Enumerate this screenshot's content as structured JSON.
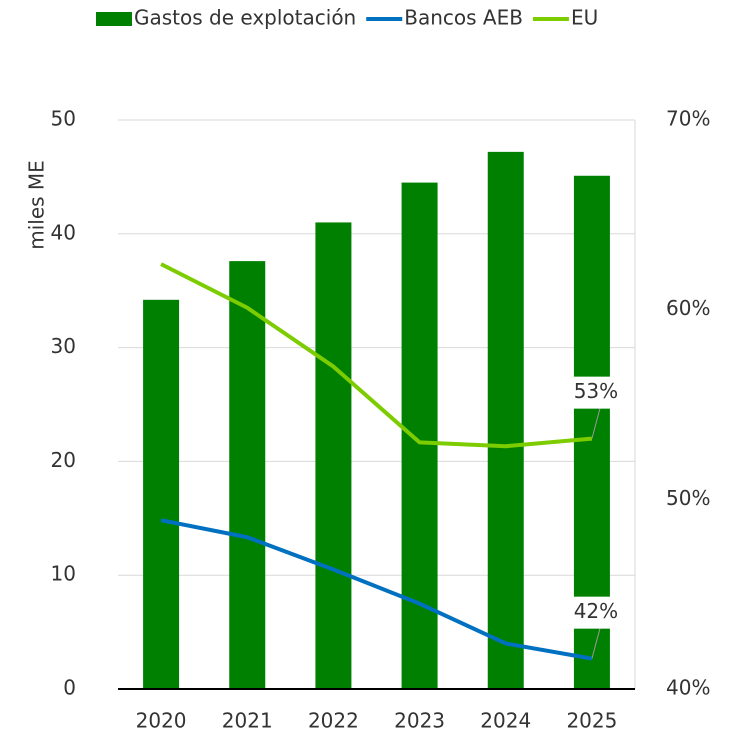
{
  "chart_data": {
    "type": "bar-line",
    "y_label": "miles ME",
    "categories": [
      "2020",
      "2021",
      "2022",
      "2023",
      "2024",
      "2025"
    ],
    "series": [
      {
        "name": "Gastos de explotación",
        "type": "bar",
        "color": "#008000",
        "values": [
          34.2,
          37.6,
          41.0,
          44.5,
          47.2,
          45.1
        ]
      },
      {
        "name": "Bancos AEB",
        "type": "line",
        "axis": "y2",
        "color": "#0070c0",
        "values": [
          48.9,
          48.0,
          46.3,
          44.5,
          42.4,
          41.6
        ],
        "value_labels": [
          null,
          null,
          null,
          null,
          null,
          "42%"
        ]
      },
      {
        "name": "EU",
        "type": "line",
        "axis": "y2",
        "color": "#7ccc00",
        "values": [
          62.4,
          60.1,
          57.0,
          53.0,
          52.8,
          53.2
        ],
        "value_labels": [
          null,
          null,
          null,
          null,
          null,
          "53%"
        ]
      }
    ],
    "ylim": [
      0,
      50
    ],
    "yticks": [
      0,
      10,
      20,
      30,
      40,
      50
    ],
    "y2lim": [
      40,
      70
    ],
    "y2ticks": [
      {
        "value": 40,
        "label": "40%"
      },
      {
        "value": 50,
        "label": "50%"
      },
      {
        "value": 60,
        "label": "60%"
      },
      {
        "value": 70,
        "label": "70%"
      }
    ],
    "grid": true,
    "legend": "top"
  }
}
